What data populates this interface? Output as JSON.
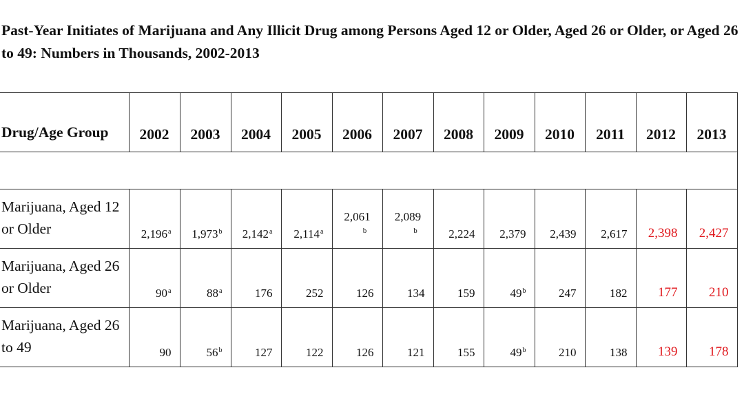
{
  "title": "Past-Year Initiates of Marijuana and Any Illicit Drug among Persons Aged 12 or Older, Aged 26 or Older, or Aged 26 to 49: Numbers in Thousands, 2002-2013",
  "table": {
    "first_header": "Drug/Age Group",
    "years": [
      "2002",
      "2003",
      "2004",
      "2005",
      "2006",
      "2007",
      "2008",
      "2009",
      "2010",
      "2011",
      "2012",
      "2013"
    ],
    "highlight_color": "#e0161b",
    "rows": [
      {
        "label": "Marijuana, Aged 12 or Older",
        "cells": [
          {
            "v": "2,196",
            "f": "a"
          },
          {
            "v": "1,973",
            "f": "b"
          },
          {
            "v": "2,142",
            "f": "a"
          },
          {
            "v": "2,114",
            "f": "a"
          },
          {
            "v": "2,061",
            "f": "b"
          },
          {
            "v": "2,089",
            "f": "b"
          },
          {
            "v": "2,224",
            "f": ""
          },
          {
            "v": "2,379",
            "f": ""
          },
          {
            "v": "2,439",
            "f": ""
          },
          {
            "v": "2,617",
            "f": ""
          },
          {
            "v": "2,398",
            "f": ""
          },
          {
            "v": "2,427",
            "f": ""
          }
        ]
      },
      {
        "label": "Marijuana, Aged 26 or Older",
        "cells": [
          {
            "v": "90",
            "f": "a"
          },
          {
            "v": "88",
            "f": "a"
          },
          {
            "v": "176",
            "f": ""
          },
          {
            "v": "252",
            "f": ""
          },
          {
            "v": "126",
            "f": ""
          },
          {
            "v": "134",
            "f": ""
          },
          {
            "v": "159",
            "f": ""
          },
          {
            "v": "49",
            "f": "b"
          },
          {
            "v": "247",
            "f": ""
          },
          {
            "v": "182",
            "f": ""
          },
          {
            "v": "177",
            "f": ""
          },
          {
            "v": "210",
            "f": ""
          }
        ]
      },
      {
        "label": "Marijuana, Aged 26 to 49",
        "cells": [
          {
            "v": "90",
            "f": ""
          },
          {
            "v": "56",
            "f": "b"
          },
          {
            "v": "127",
            "f": ""
          },
          {
            "v": "122",
            "f": ""
          },
          {
            "v": "126",
            "f": ""
          },
          {
            "v": "121",
            "f": ""
          },
          {
            "v": "155",
            "f": ""
          },
          {
            "v": "49",
            "f": "b"
          },
          {
            "v": "210",
            "f": ""
          },
          {
            "v": "138",
            "f": ""
          },
          {
            "v": "139",
            "f": ""
          },
          {
            "v": "178",
            "f": ""
          }
        ]
      }
    ]
  }
}
